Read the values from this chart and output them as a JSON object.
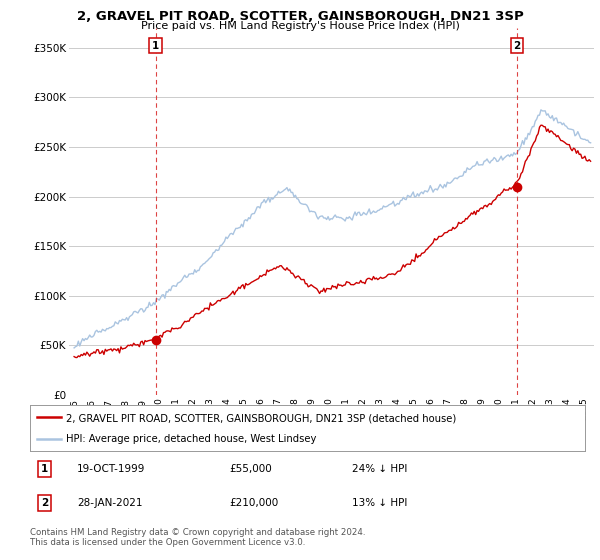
{
  "title": "2, GRAVEL PIT ROAD, SCOTTER, GAINSBOROUGH, DN21 3SP",
  "subtitle": "Price paid vs. HM Land Registry's House Price Index (HPI)",
  "hpi_color": "#aac4e0",
  "price_color": "#cc0000",
  "background_color": "#ffffff",
  "grid_color": "#cccccc",
  "ylim": [
    0,
    370000
  ],
  "yticks": [
    0,
    50000,
    100000,
    150000,
    200000,
    250000,
    300000,
    350000
  ],
  "legend_label_red": "2, GRAVEL PIT ROAD, SCOTTER, GAINSBOROUGH, DN21 3SP (detached house)",
  "legend_label_blue": "HPI: Average price, detached house, West Lindsey",
  "sale1_date": "19-OCT-1999",
  "sale1_price": "£55,000",
  "sale1_hpi": "24% ↓ HPI",
  "sale1_year": 1999.8,
  "sale1_value": 55000,
  "sale2_date": "28-JAN-2021",
  "sale2_price": "£210,000",
  "sale2_hpi": "13% ↓ HPI",
  "sale2_year": 2021.07,
  "sale2_value": 210000,
  "footer": "Contains HM Land Registry data © Crown copyright and database right 2024.\nThis data is licensed under the Open Government Licence v3.0."
}
